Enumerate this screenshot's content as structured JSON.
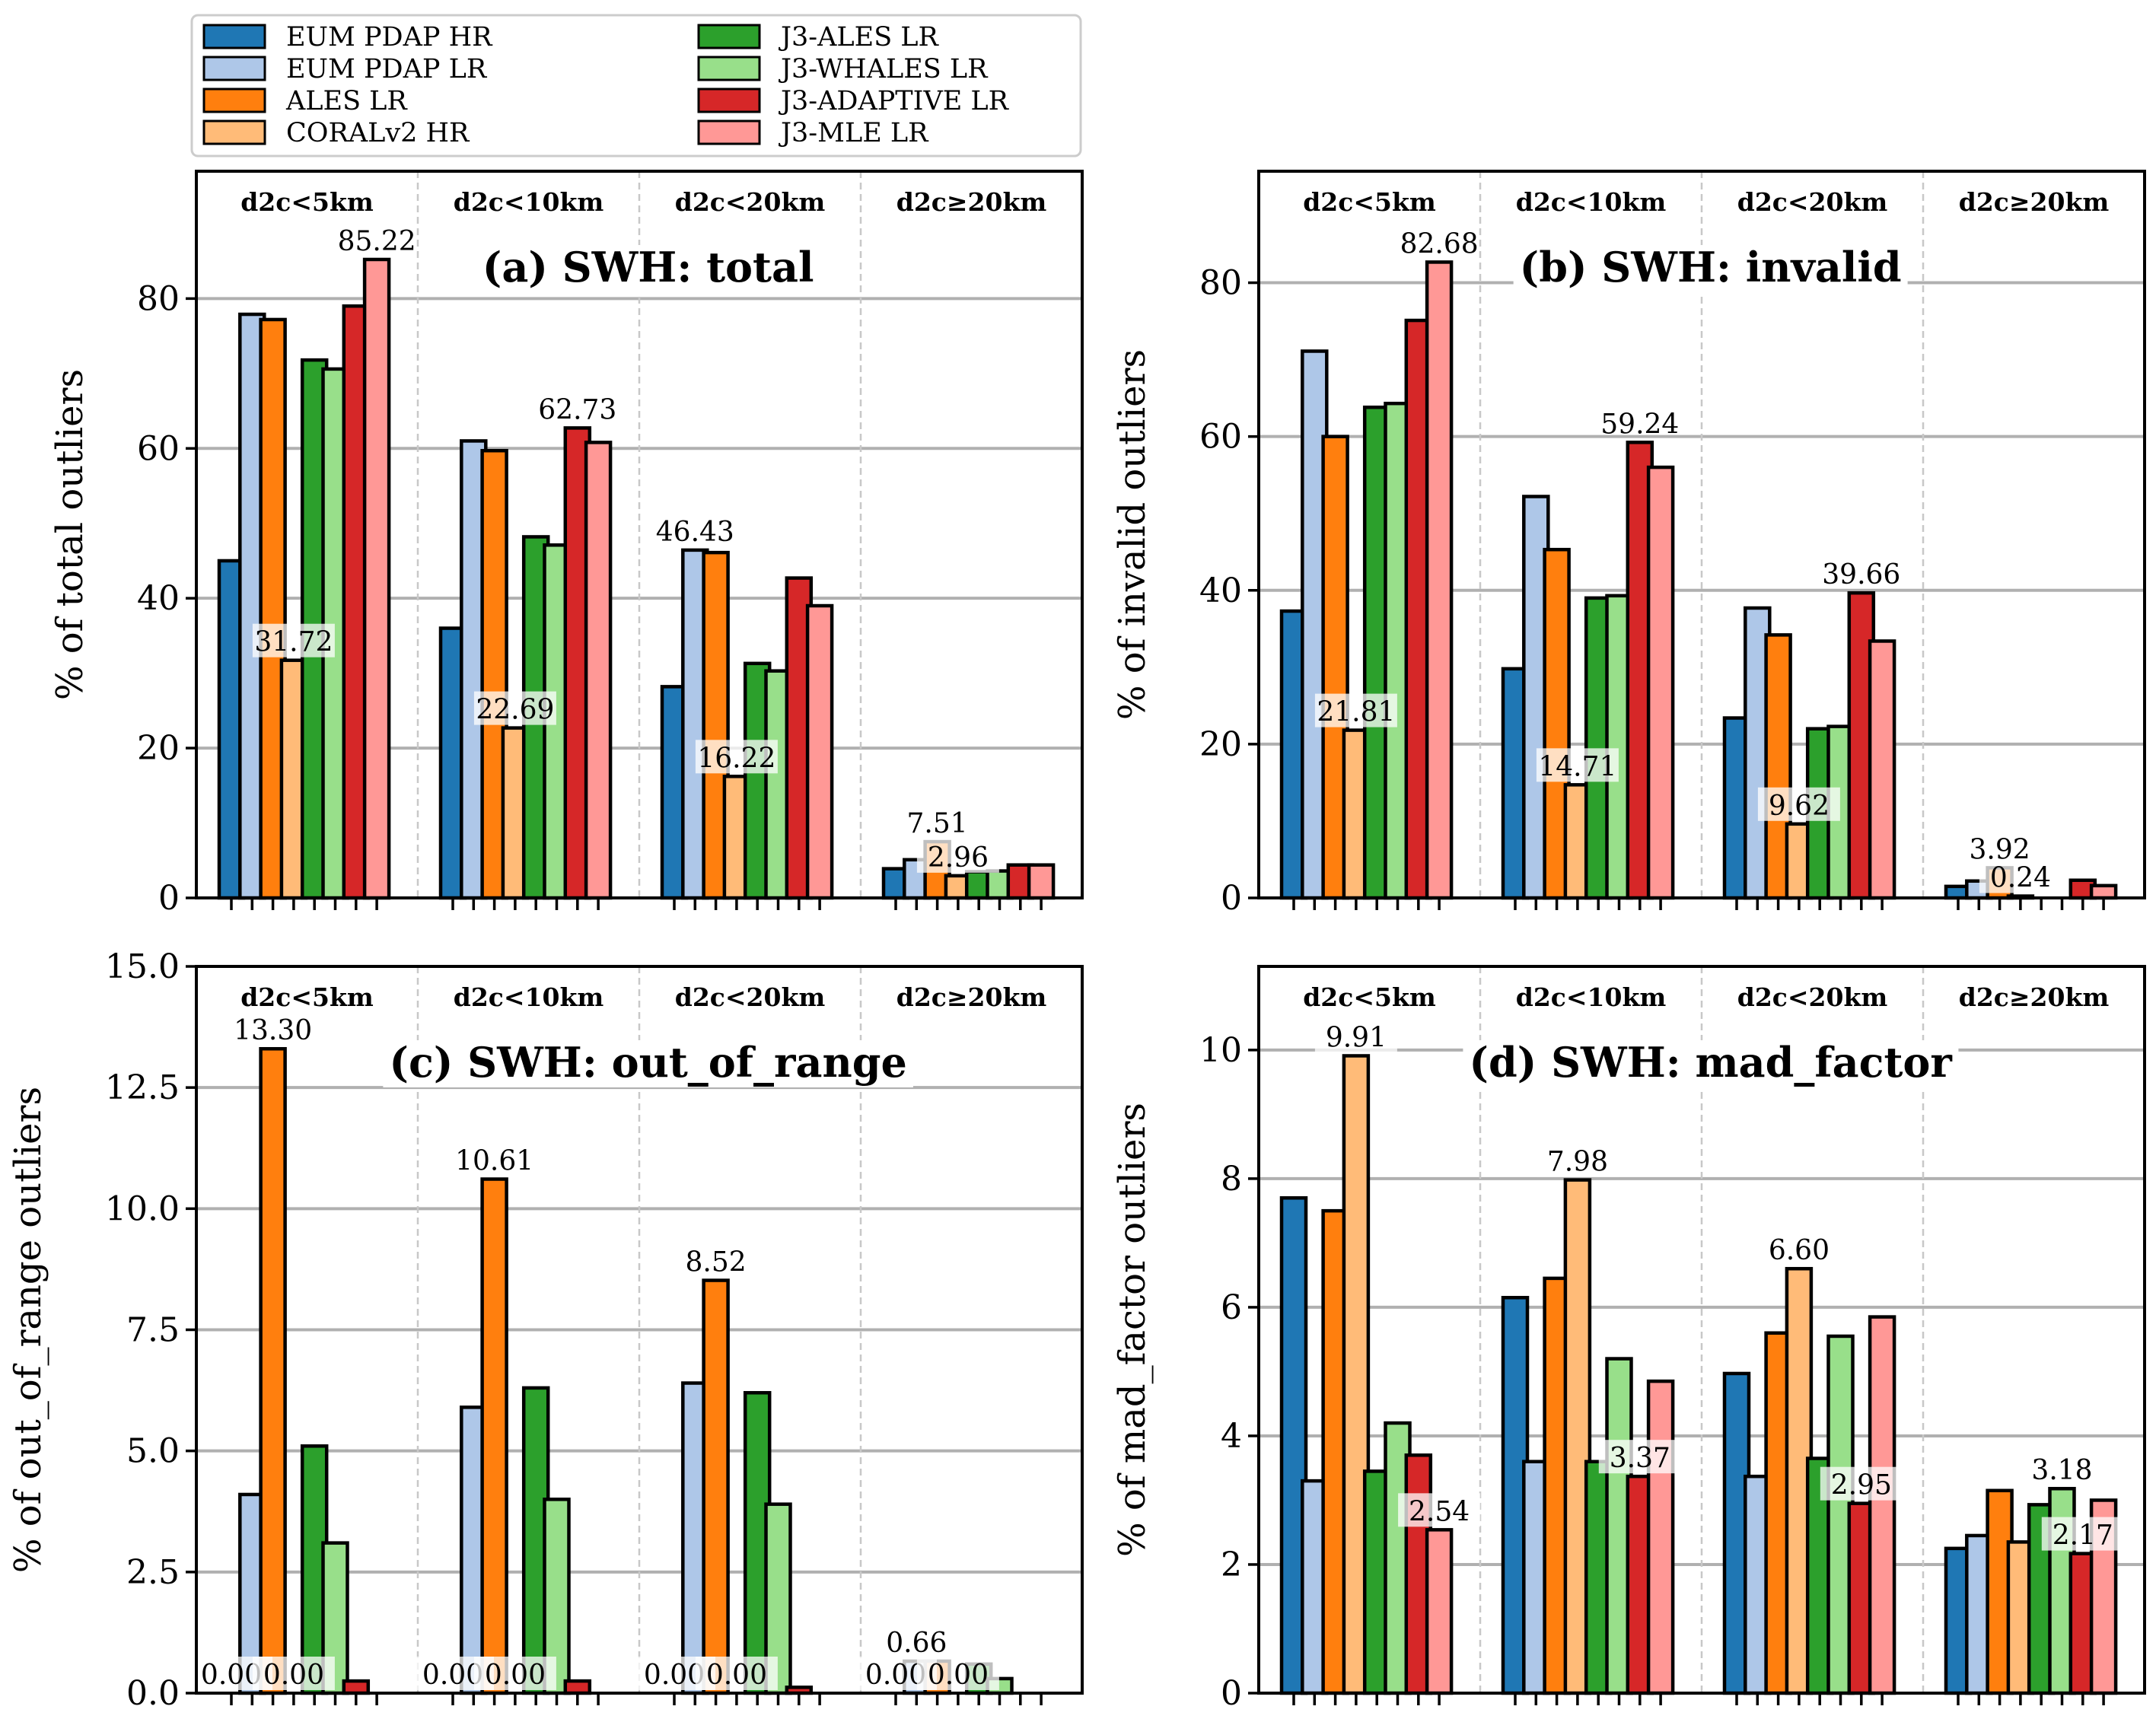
{
  "legend": {
    "entries": [
      {
        "label": "EUM PDAP HR",
        "color": "#1f77b4"
      },
      {
        "label": "EUM PDAP LR",
        "color": "#aec7e8"
      },
      {
        "label": "ALES LR",
        "color": "#ff7f0e"
      },
      {
        "label": "CORALv2 HR",
        "color": "#ffbb78"
      },
      {
        "label": "J3-ALES LR",
        "color": "#2ca02c"
      },
      {
        "label": "J3-WHALES LR",
        "color": "#98df8a"
      },
      {
        "label": "J3-ADAPTIVE LR",
        "color": "#d62728"
      },
      {
        "label": "J3-MLE LR",
        "color": "#ff9896"
      }
    ]
  },
  "chart_data": [
    {
      "type": "bar",
      "title": "(a) SWH: total",
      "ylabel": "% of total outliers",
      "ylim": [
        0,
        97
      ],
      "yticks": [
        0,
        20,
        40,
        60,
        80
      ],
      "ytick_labels": [
        "0",
        "20",
        "40",
        "60",
        "80"
      ],
      "categories": [
        "d2c<5km",
        "d2c<10km",
        "d2c<20km",
        "d2c≥20km"
      ],
      "series": [
        {
          "name": "EUM PDAP HR",
          "values": [
            45.0,
            36.0,
            28.2,
            3.9
          ]
        },
        {
          "name": "EUM PDAP LR",
          "values": [
            77.9,
            61.0,
            46.43,
            5.1
          ]
        },
        {
          "name": "ALES LR",
          "values": [
            77.2,
            59.7,
            46.1,
            7.51
          ]
        },
        {
          "name": "CORALv2 HR",
          "values": [
            31.72,
            22.69,
            16.22,
            2.96
          ]
        },
        {
          "name": "J3-ALES LR",
          "values": [
            71.8,
            48.2,
            31.3,
            3.5
          ]
        },
        {
          "name": "J3-WHALES LR",
          "values": [
            70.6,
            47.1,
            30.3,
            3.6
          ]
        },
        {
          "name": "J3-ADAPTIVE LR",
          "values": [
            79.0,
            62.73,
            42.7,
            4.4
          ]
        },
        {
          "name": "J3-MLE LR",
          "values": [
            85.22,
            60.8,
            39.0,
            4.4
          ]
        }
      ],
      "annotations": [
        {
          "text": "85.22",
          "group": 0,
          "series": 7,
          "box": false
        },
        {
          "text": "31.72",
          "group": 0,
          "series": 3,
          "box": true
        },
        {
          "text": "62.73",
          "group": 1,
          "series": 6,
          "box": false
        },
        {
          "text": "22.69",
          "group": 1,
          "series": 3,
          "box": true
        },
        {
          "text": "46.43",
          "group": 2,
          "series": 1,
          "box": false
        },
        {
          "text": "16.22",
          "group": 2,
          "series": 3,
          "box": true
        },
        {
          "text": "7.51",
          "group": 3,
          "series": 2,
          "box": false
        },
        {
          "text": "2.96",
          "group": 3,
          "series": 3,
          "box": true
        }
      ],
      "grid": "horizontal"
    },
    {
      "type": "bar",
      "title": "(b) SWH: invalid",
      "ylabel": "% of invalid outliers",
      "ylim": [
        0,
        94.5
      ],
      "yticks": [
        0,
        20,
        40,
        60,
        80
      ],
      "ytick_labels": [
        "0",
        "20",
        "40",
        "60",
        "80"
      ],
      "categories": [
        "d2c<5km",
        "d2c<10km",
        "d2c<20km",
        "d2c≥20km"
      ],
      "series": [
        {
          "name": "EUM PDAP HR",
          "values": [
            37.3,
            29.8,
            23.4,
            1.5
          ]
        },
        {
          "name": "EUM PDAP LR",
          "values": [
            71.1,
            52.2,
            37.7,
            2.2
          ]
        },
        {
          "name": "ALES LR",
          "values": [
            60.0,
            45.3,
            34.2,
            3.92
          ]
        },
        {
          "name": "CORALv2 HR",
          "values": [
            21.81,
            14.71,
            9.62,
            0.24
          ]
        },
        {
          "name": "J3-ALES LR",
          "values": [
            63.8,
            39.0,
            22.0,
            0.0
          ]
        },
        {
          "name": "J3-WHALES LR",
          "values": [
            64.3,
            39.3,
            22.3,
            0.0
          ]
        },
        {
          "name": "J3-ADAPTIVE LR",
          "values": [
            75.1,
            59.24,
            39.66,
            2.3
          ]
        },
        {
          "name": "J3-MLE LR",
          "values": [
            82.68,
            56.0,
            33.4,
            1.6
          ]
        }
      ],
      "annotations": [
        {
          "text": "82.68",
          "group": 0,
          "series": 7,
          "box": false
        },
        {
          "text": "21.81",
          "group": 0,
          "series": 3,
          "box": true
        },
        {
          "text": "59.24",
          "group": 1,
          "series": 6,
          "box": false
        },
        {
          "text": "14.71",
          "group": 1,
          "series": 3,
          "box": true
        },
        {
          "text": "39.66",
          "group": 2,
          "series": 6,
          "box": false
        },
        {
          "text": "9.62",
          "group": 2,
          "series": 3,
          "box": true
        },
        {
          "text": "3.92",
          "group": 3,
          "series": 2,
          "box": false
        },
        {
          "text": "0.24",
          "group": 3,
          "series": 3,
          "box": true
        }
      ],
      "grid": "horizontal"
    },
    {
      "type": "bar",
      "title": "(c) SWH: out_of_range",
      "ylabel": "% of out_of_range outliers",
      "ylim": [
        0,
        15
      ],
      "yticks": [
        0,
        2.5,
        5,
        7.5,
        10,
        12.5,
        15
      ],
      "ytick_labels": [
        "0.0",
        "2.5",
        "5.0",
        "7.5",
        "10.0",
        "12.5",
        "15.0"
      ],
      "categories": [
        "d2c<5km",
        "d2c<10km",
        "d2c<20km",
        "d2c≥20km"
      ],
      "series": [
        {
          "name": "EUM PDAP HR",
          "values": [
            0.0,
            0.0,
            0.0,
            0.0
          ]
        },
        {
          "name": "EUM PDAP LR",
          "values": [
            4.1,
            5.9,
            6.4,
            0.66
          ]
        },
        {
          "name": "ALES LR",
          "values": [
            13.3,
            10.61,
            8.52,
            0.66
          ]
        },
        {
          "name": "CORALv2 HR",
          "values": [
            0.0,
            0.0,
            0.0,
            0.0
          ]
        },
        {
          "name": "J3-ALES LR",
          "values": [
            5.1,
            6.3,
            6.2,
            0.6
          ]
        },
        {
          "name": "J3-WHALES LR",
          "values": [
            3.1,
            4.0,
            3.9,
            0.3
          ]
        },
        {
          "name": "J3-ADAPTIVE LR",
          "values": [
            0.25,
            0.25,
            0.12,
            0.0
          ]
        },
        {
          "name": "J3-MLE LR",
          "values": [
            0.0,
            0.0,
            0.0,
            0.0
          ]
        }
      ],
      "annotations": [
        {
          "text": "13.30",
          "group": 0,
          "series": 2,
          "box": false
        },
        {
          "text": "0.00",
          "group": 0,
          "series": 0,
          "box": true
        },
        {
          "text": "0.00",
          "group": 0,
          "series": 3,
          "box": true
        },
        {
          "text": "10.61",
          "group": 1,
          "series": 2,
          "box": false
        },
        {
          "text": "0.00",
          "group": 1,
          "series": 0,
          "box": true
        },
        {
          "text": "0.00",
          "group": 1,
          "series": 3,
          "box": true
        },
        {
          "text": "8.52",
          "group": 2,
          "series": 2,
          "box": false
        },
        {
          "text": "0.00",
          "group": 2,
          "series": 0,
          "box": true
        },
        {
          "text": "0.00",
          "group": 2,
          "series": 3,
          "box": true
        },
        {
          "text": "0.66",
          "group": 3,
          "series": 1,
          "box": false
        },
        {
          "text": "0.00",
          "group": 3,
          "series": 0,
          "box": true
        },
        {
          "text": "0.00",
          "group": 3,
          "series": 3,
          "box": true
        }
      ],
      "grid": "horizontal"
    },
    {
      "type": "bar",
      "title": "(d) SWH: mad_factor",
      "ylabel": "% of mad_factor outliers",
      "ylim": [
        0,
        11.3
      ],
      "yticks": [
        0,
        2,
        4,
        6,
        8,
        10
      ],
      "ytick_labels": [
        "0",
        "2",
        "4",
        "6",
        "8",
        "10"
      ],
      "categories": [
        "d2c<5km",
        "d2c<10km",
        "d2c<20km",
        "d2c≥20km"
      ],
      "series": [
        {
          "name": "EUM PDAP HR",
          "values": [
            7.7,
            6.15,
            4.97,
            2.25
          ]
        },
        {
          "name": "EUM PDAP LR",
          "values": [
            3.3,
            3.6,
            3.37,
            2.45
          ]
        },
        {
          "name": "ALES LR",
          "values": [
            7.5,
            6.45,
            5.6,
            3.15
          ]
        },
        {
          "name": "CORALv2 HR",
          "values": [
            9.91,
            7.98,
            6.6,
            2.35
          ]
        },
        {
          "name": "J3-ALES LR",
          "values": [
            3.45,
            3.6,
            3.65,
            2.93
          ]
        },
        {
          "name": "J3-WHALES LR",
          "values": [
            4.2,
            5.2,
            5.55,
            3.18
          ]
        },
        {
          "name": "J3-ADAPTIVE LR",
          "values": [
            3.7,
            3.37,
            2.95,
            2.17
          ]
        },
        {
          "name": "J3-MLE LR",
          "values": [
            2.54,
            4.85,
            5.85,
            3.0
          ]
        }
      ],
      "annotations": [
        {
          "text": "9.91",
          "group": 0,
          "series": 3,
          "box": true
        },
        {
          "text": "2.54",
          "group": 0,
          "series": 7,
          "box": true
        },
        {
          "text": "7.98",
          "group": 1,
          "series": 3,
          "box": true
        },
        {
          "text": "3.37",
          "group": 1,
          "series": 6,
          "box": true
        },
        {
          "text": "6.60",
          "group": 2,
          "series": 3,
          "box": false
        },
        {
          "text": "2.95",
          "group": 2,
          "series": 6,
          "box": true
        },
        {
          "text": "3.18",
          "group": 3,
          "series": 5,
          "box": false
        },
        {
          "text": "2.17",
          "group": 3,
          "series": 6,
          "box": true
        }
      ],
      "grid": "horizontal"
    }
  ]
}
